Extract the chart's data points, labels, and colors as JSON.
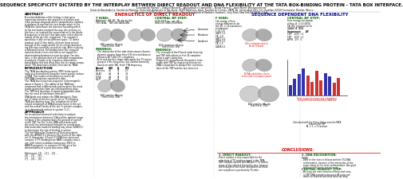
{
  "title": "SEQUENCE SPECIFICITY DICTATED BY THE INTERPLAY BETWEEN DIRECT READOUT AND DNA FLEXIBILITY AT THE TATA BOX-BINDING PROTEIN - TATA BOX INTERFACE.",
  "authors": "Leonardo Pardo¹, David Beach¹, Alexander Campillo¹, Nina Pance¹, and Harri Wenerstrom²",
  "affil1": "Unitat de Bioestadistica, Facultat de Medicina, Universitat Autonoma de Barcelona, 08193 Bellaterra, Spain; Facultad de Ciencias, UAEM, Av. Universidad 1001, Col. Chamilpa, 62210 Cuernavaca, Morelos, Mexico",
  "affil2": "²Department of Physiology and Biophysics, Mount Sinai School of Medicine, Gustave L. Levy Drive, New York NY 10029, U.S.A.",
  "bg_color": "#ffffff",
  "title_color": "#000000",
  "left_section_color": "#cc0000",
  "right_section_color": "#000099",
  "concl_title_color": "#cc0000",
  "body_text_color": "#000000",
  "heading_color": "#006600"
}
